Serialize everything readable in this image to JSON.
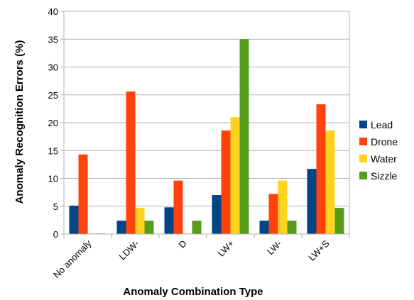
{
  "chart_data": {
    "type": "bar",
    "title": "",
    "xlabel": "Anomaly Combination Type",
    "ylabel": "Anomaly Recognition Errors (%)",
    "categories": [
      "No anomaly",
      "LDW-",
      "D",
      "LW+",
      "LW-",
      "LW+S"
    ],
    "series": [
      {
        "name": "Lead",
        "color": "#004586",
        "values": [
          5.1,
          2.4,
          4.8,
          7.0,
          2.4,
          11.7
        ]
      },
      {
        "name": "Drone",
        "color": "#ff420e",
        "values": [
          14.3,
          25.6,
          9.6,
          18.6,
          7.2,
          23.3
        ]
      },
      {
        "name": "Water",
        "color": "#ffd320",
        "values": [
          0.1,
          4.7,
          0.1,
          21.0,
          9.6,
          18.6
        ]
      },
      {
        "name": "Sizzle",
        "color": "#579d1c",
        "values": [
          0.1,
          2.4,
          2.4,
          35.0,
          2.4,
          4.7
        ]
      }
    ],
    "ylim": [
      0,
      40
    ],
    "yticks": [
      0,
      5,
      10,
      15,
      20,
      25,
      30,
      35,
      40
    ],
    "grid": true,
    "legend": "right"
  }
}
